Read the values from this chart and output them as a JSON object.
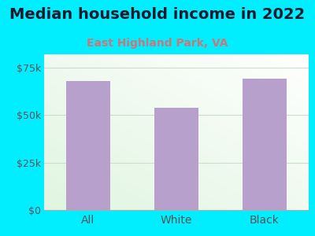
{
  "title": "Median household income in 2022",
  "subtitle": "East Highland Park, VA",
  "categories": [
    "All",
    "White",
    "Black"
  ],
  "values": [
    68000,
    54000,
    69000
  ],
  "bar_color": "#b8a0cc",
  "title_color": "#1a1a2e",
  "subtitle_color": "#cc7777",
  "outer_bg": "#00eeff",
  "yticks": [
    0,
    25000,
    50000,
    75000
  ],
  "ytick_labels": [
    "$0",
    "$25k",
    "$50k",
    "$75k"
  ],
  "ylim": [
    0,
    82000
  ],
  "grid_color": "#ccddcc",
  "title_fontsize": 14,
  "subtitle_fontsize": 10,
  "tick_fontsize": 9,
  "xlabel_fontsize": 10
}
